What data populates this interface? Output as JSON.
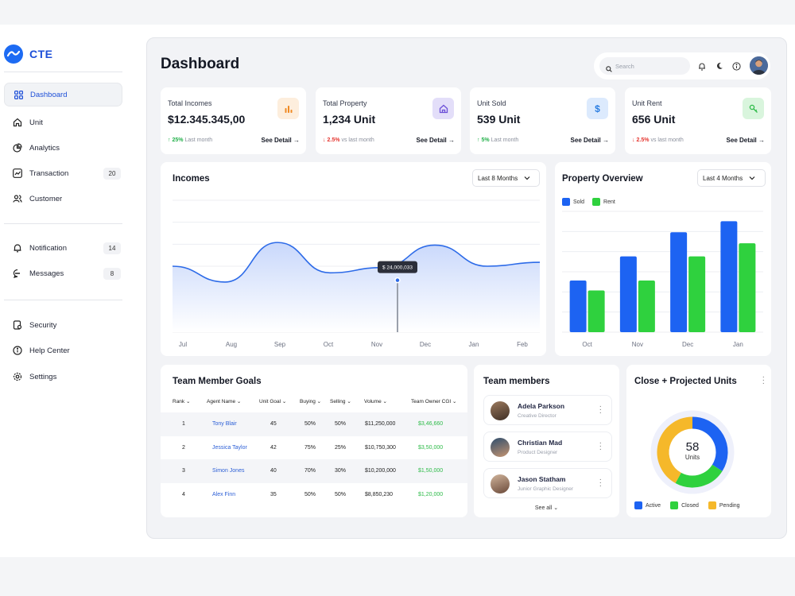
{
  "app": {
    "name": "CTE"
  },
  "sidebar": {
    "items": [
      {
        "label": "Dashboard",
        "icon": "grid-icon",
        "active": true
      },
      {
        "label": "Unit",
        "icon": "home-icon"
      },
      {
        "label": "Analytics",
        "icon": "pie-chart-icon"
      },
      {
        "label": "Transaction",
        "icon": "trend-icon",
        "badge": "20"
      },
      {
        "label": "Customer",
        "icon": "users-icon"
      }
    ],
    "items2": [
      {
        "label": "Notification",
        "icon": "bell-icon",
        "badge": "14"
      },
      {
        "label": "Messages",
        "icon": "message-icon",
        "badge": "8"
      }
    ],
    "items3": [
      {
        "label": "Security",
        "icon": "shield-icon"
      },
      {
        "label": "Help Center",
        "icon": "info-icon"
      },
      {
        "label": "Settings",
        "icon": "gear-icon"
      }
    ]
  },
  "header": {
    "title": "Dashboard",
    "search_placeholder": "Search"
  },
  "stats": [
    {
      "label": "Total Incomes",
      "value": "$12.345.345,00",
      "pct": "25%",
      "note": "Last month",
      "trend": "up",
      "detail": "See Detail →",
      "icon": "bar-chart-icon",
      "icon_bg": "#fdeedd",
      "icon_color": "#f08a24"
    },
    {
      "label": "Total Property",
      "value": "1,234 Unit",
      "pct": "2.5%",
      "note": "vs last month",
      "trend": "down",
      "detail": "See Detail →",
      "icon": "home-icon",
      "icon_bg": "#e3def9",
      "icon_color": "#6c4fd8"
    },
    {
      "label": "Unit Sold",
      "value": "539 Unit",
      "pct": "5%",
      "note": "Last month",
      "trend": "up",
      "detail": "See Detail →",
      "icon": "dollar-icon",
      "icon_bg": "#dceafd",
      "icon_color": "#2a7de1"
    },
    {
      "label": "Unit Rent",
      "value": "656 Unit",
      "pct": "2.5%",
      "note": "vs last month",
      "trend": "down",
      "detail": "See Detail →",
      "icon": "key-icon",
      "icon_bg": "#d9f5dd",
      "icon_color": "#2dbb48"
    }
  ],
  "incomes": {
    "title": "Incomes",
    "range": "Last 8 Months",
    "tooltip": "$ 24,000,033"
  },
  "property": {
    "title": "Property Overview",
    "range": "Last 4 Months"
  },
  "chart_data": [
    {
      "type": "area",
      "title": "Incomes",
      "categories": [
        "Jul",
        "Aug",
        "Sep",
        "Oct",
        "Nov",
        "Dec",
        "Jan",
        "Feb"
      ],
      "values": [
        50,
        38,
        68,
        45,
        49,
        66,
        50,
        53
      ],
      "ylim": [
        0,
        100
      ],
      "highlight": {
        "category": "Nov",
        "label": "$ 24,000,033"
      },
      "grid": true
    },
    {
      "type": "bar",
      "title": "Property Overview",
      "categories": [
        "Oct",
        "Nov",
        "Dec",
        "Jan"
      ],
      "series": [
        {
          "name": "Sold",
          "values": [
            47,
            69,
            91,
            101
          ],
          "color": "#1d63f2"
        },
        {
          "name": "Rent",
          "values": [
            38,
            47,
            69,
            81
          ],
          "color": "#2fd13e"
        }
      ],
      "ylim": [
        0,
        110
      ],
      "legend": "top-left",
      "grid": true
    },
    {
      "type": "pie",
      "title": "Close + Projected Units",
      "center_value": "58",
      "center_label": "Units",
      "slices": [
        {
          "name": "Active",
          "value": 34,
          "color": "#1d63f2"
        },
        {
          "name": "Closed",
          "value": 24,
          "color": "#2fd13e"
        },
        {
          "name": "Pending",
          "value": 42,
          "color": "#f5b82a"
        }
      ]
    }
  ],
  "goals": {
    "title": "Team Member Goals",
    "headers": [
      "Rank",
      "Agent Name",
      "Unit Goal",
      "Buying",
      "Selling",
      "Volume",
      "Team Owner CGI"
    ],
    "rows": [
      [
        "1",
        "Tony Blair",
        "45",
        "50%",
        "50%",
        "$11,250,000",
        "$3,46,660"
      ],
      [
        "2",
        "Jessica Taylor",
        "42",
        "75%",
        "25%",
        "$10,750,300",
        "$3,50,000"
      ],
      [
        "3",
        "Simon Jones",
        "40",
        "70%",
        "30%",
        "$10,200,000",
        "$1,50,000"
      ],
      [
        "4",
        "Alex Finn",
        "35",
        "50%",
        "50%",
        "$8,850,230",
        "$1,20,000"
      ]
    ]
  },
  "team": {
    "title": "Team members",
    "members": [
      {
        "name": "Adela Parkson",
        "role": "Creative Director"
      },
      {
        "name": "Christian Mad",
        "role": "Product Designer"
      },
      {
        "name": "Jason Statham",
        "role": "Junior Graphic Designer"
      }
    ],
    "see_all": "See all ⌄"
  },
  "projected": {
    "title": "Close + Projected Units",
    "center_value": "58",
    "center_label": "Units"
  }
}
